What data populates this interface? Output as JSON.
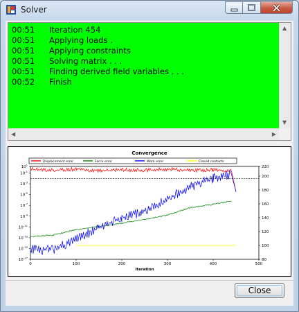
{
  "window": {
    "title": "Solver",
    "controls": [
      "minimize-icon",
      "maximize-icon",
      "close-icon"
    ]
  },
  "log": {
    "background": "#00ff00",
    "lines": [
      {
        "time": "00:51",
        "message": "Iteration 454"
      },
      {
        "time": "00:51",
        "message": "Applying loads ."
      },
      {
        "time": "00:51",
        "message": "Applying constraints"
      },
      {
        "time": "00:51",
        "message": "Solving matrix . . ."
      },
      {
        "time": "00:51",
        "message": "Finding derived field variables . . ."
      },
      {
        "time": "00:52",
        "message": "Finish"
      }
    ]
  },
  "chart_data": {
    "type": "line",
    "title": "Convergence",
    "xlabel": "Iteration",
    "ylabel": "",
    "xlim": [
      0,
      500
    ],
    "x_ticks": [
      0,
      100,
      200,
      300,
      400,
      500
    ],
    "y_left": {
      "scale": "log",
      "lim_exp": [
        -17,
        1
      ],
      "tick_exps": [
        1,
        -1,
        -3,
        -5,
        -7,
        -9,
        -11,
        -13,
        -15,
        -17
      ]
    },
    "y_right": {
      "lim": [
        80,
        220
      ],
      "ticks": [
        80,
        100,
        120,
        140,
        160,
        180,
        200,
        220
      ]
    },
    "legend_position": "top",
    "reference_line": {
      "axis": "left",
      "value_exp": -2,
      "style": "dashed"
    },
    "series": [
      {
        "name": "Displacement error",
        "color": "#ff0000",
        "axis": "left",
        "points": [
          [
            0,
            -0.3
          ],
          [
            50,
            -0.5
          ],
          [
            100,
            -0.3
          ],
          [
            150,
            -0.6
          ],
          [
            200,
            -0.4
          ],
          [
            250,
            -0.5
          ],
          [
            300,
            -0.3
          ],
          [
            350,
            -0.5
          ],
          [
            400,
            -0.4
          ],
          [
            440,
            -0.6
          ],
          [
            450,
            -4.5
          ]
        ]
      },
      {
        "name": "Force error",
        "color": "#008000",
        "axis": "left",
        "points": [
          [
            0,
            -12.8
          ],
          [
            50,
            -12.5
          ],
          [
            100,
            -11.5
          ],
          [
            150,
            -10.9
          ],
          [
            200,
            -10.3
          ],
          [
            250,
            -9.6
          ],
          [
            300,
            -8.8
          ],
          [
            350,
            -7.4
          ],
          [
            400,
            -6.8
          ],
          [
            440,
            -6.2
          ]
        ]
      },
      {
        "name": "Work error",
        "color": "#0000ff",
        "axis": "left",
        "points": [
          [
            0,
            -15.2
          ],
          [
            50,
            -15.2
          ],
          [
            100,
            -13.3
          ],
          [
            150,
            -11.2
          ],
          [
            200,
            -9.4
          ],
          [
            250,
            -8.1
          ],
          [
            300,
            -5.8
          ],
          [
            350,
            -3.6
          ],
          [
            400,
            -2.0
          ],
          [
            440,
            -1.2
          ],
          [
            450,
            -4.5
          ]
        ]
      },
      {
        "name": "Closed contacts",
        "color": "#ffff00",
        "axis": "right",
        "points": [
          [
            100,
            100
          ],
          [
            450,
            100
          ]
        ]
      }
    ]
  },
  "footer": {
    "close_label": "Close"
  }
}
